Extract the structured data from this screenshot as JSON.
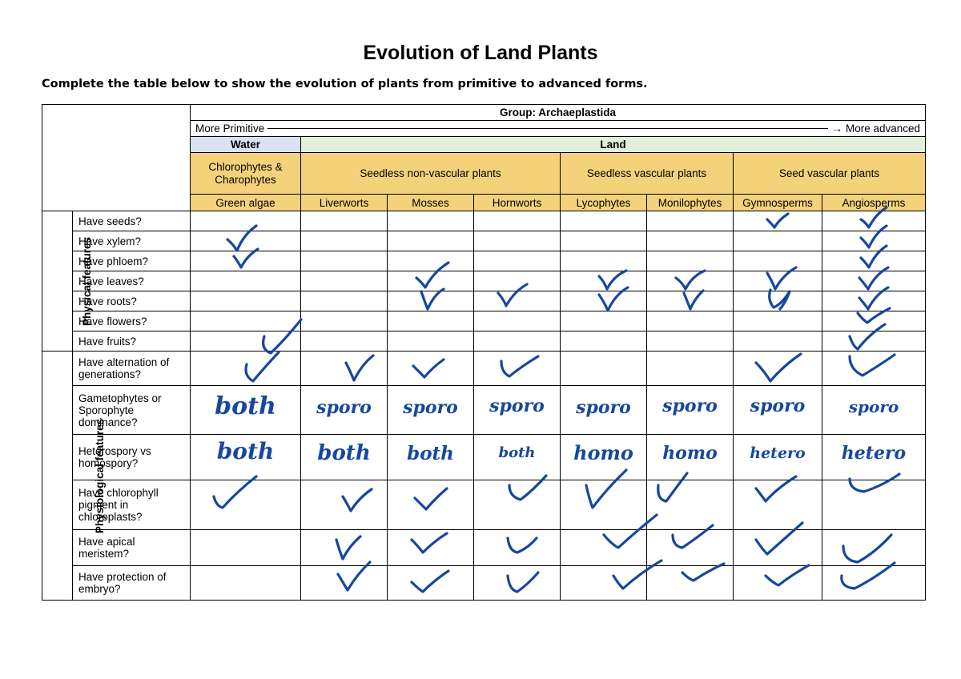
{
  "title": "Evolution of Land Plants",
  "instruction": "Complete the table below to show the evolution of plants from primitive to advanced forms.",
  "header": {
    "group": "Group: Archaeplastida",
    "more_primitive": "More Primitive",
    "more_advanced": "More advanced",
    "arrow": "→",
    "water": "Water",
    "land": "Land",
    "categories": [
      "Chlorophytes & Charophytes",
      "Seedless non-vascular plants",
      "Seedless vascular plants",
      "Seed vascular plants"
    ],
    "columns": [
      "Green algae",
      "Liverworts",
      "Mosses",
      "Hornworts",
      "Lycophytes",
      "Monilophytes",
      "Gymnosperms",
      "Angiosperms"
    ]
  },
  "sections": {
    "physical": "Physical features",
    "physiological": "Physiological features"
  },
  "questions": {
    "physical": [
      "Have seeds?",
      "Have xylem?",
      "Have phloem?",
      "Have leaves?",
      "Have roots?",
      "Have flowers?",
      "Have fruits?"
    ],
    "physiological": [
      "Have alternation of generations?",
      "Gametophytes or Sporophyte dominance?",
      "Heterospory vs homospory?",
      "Have chlorophyll pigment in chloroplasts?",
      "Have apical meristem?",
      "Have protection of embryo?"
    ]
  },
  "answers": {
    "dominance": [
      "both",
      "sporo",
      "sporo",
      "sporo",
      "sporo",
      "sporo",
      "sporo",
      "sporo"
    ],
    "spory": [
      "both",
      "both",
      "both",
      "both",
      "homo",
      "homo",
      "hetero",
      "hetero"
    ]
  },
  "ink_color": "#17479e",
  "header_colors": {
    "water": "#d9e1f2",
    "land": "#e2efda",
    "category": "#f4d27a"
  }
}
